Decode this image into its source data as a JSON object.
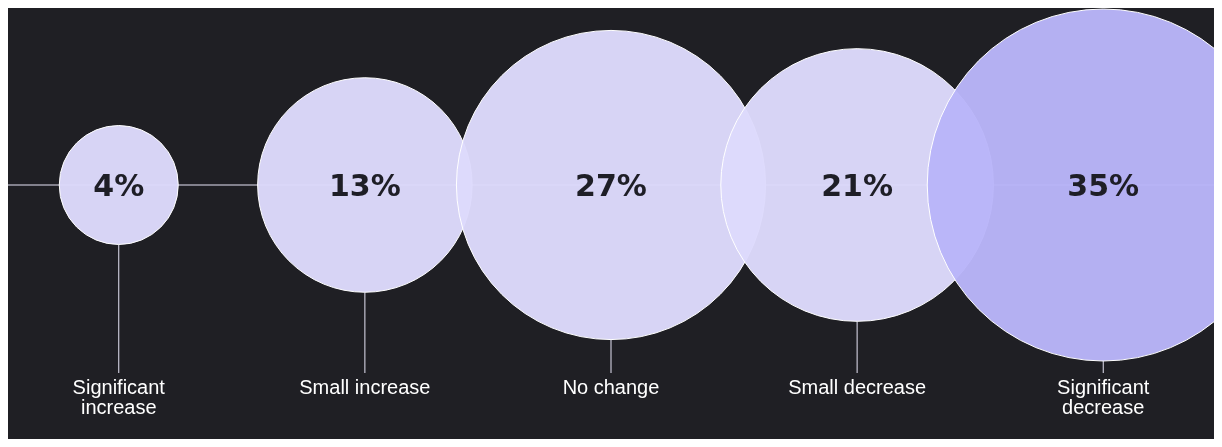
{
  "chart_data": {
    "type": "other",
    "categories": [
      "Significant increase",
      "Small increase",
      "No change",
      "Small decrease",
      "Significant decrease"
    ],
    "values": [
      4,
      13,
      27,
      21,
      35
    ],
    "value_labels": [
      "4%",
      "13%",
      "27%",
      "21%",
      "35%"
    ],
    "colors": [
      "#dddafc",
      "#dddafc",
      "#dddafc",
      "#dddafc",
      "#b9b5f9"
    ]
  }
}
